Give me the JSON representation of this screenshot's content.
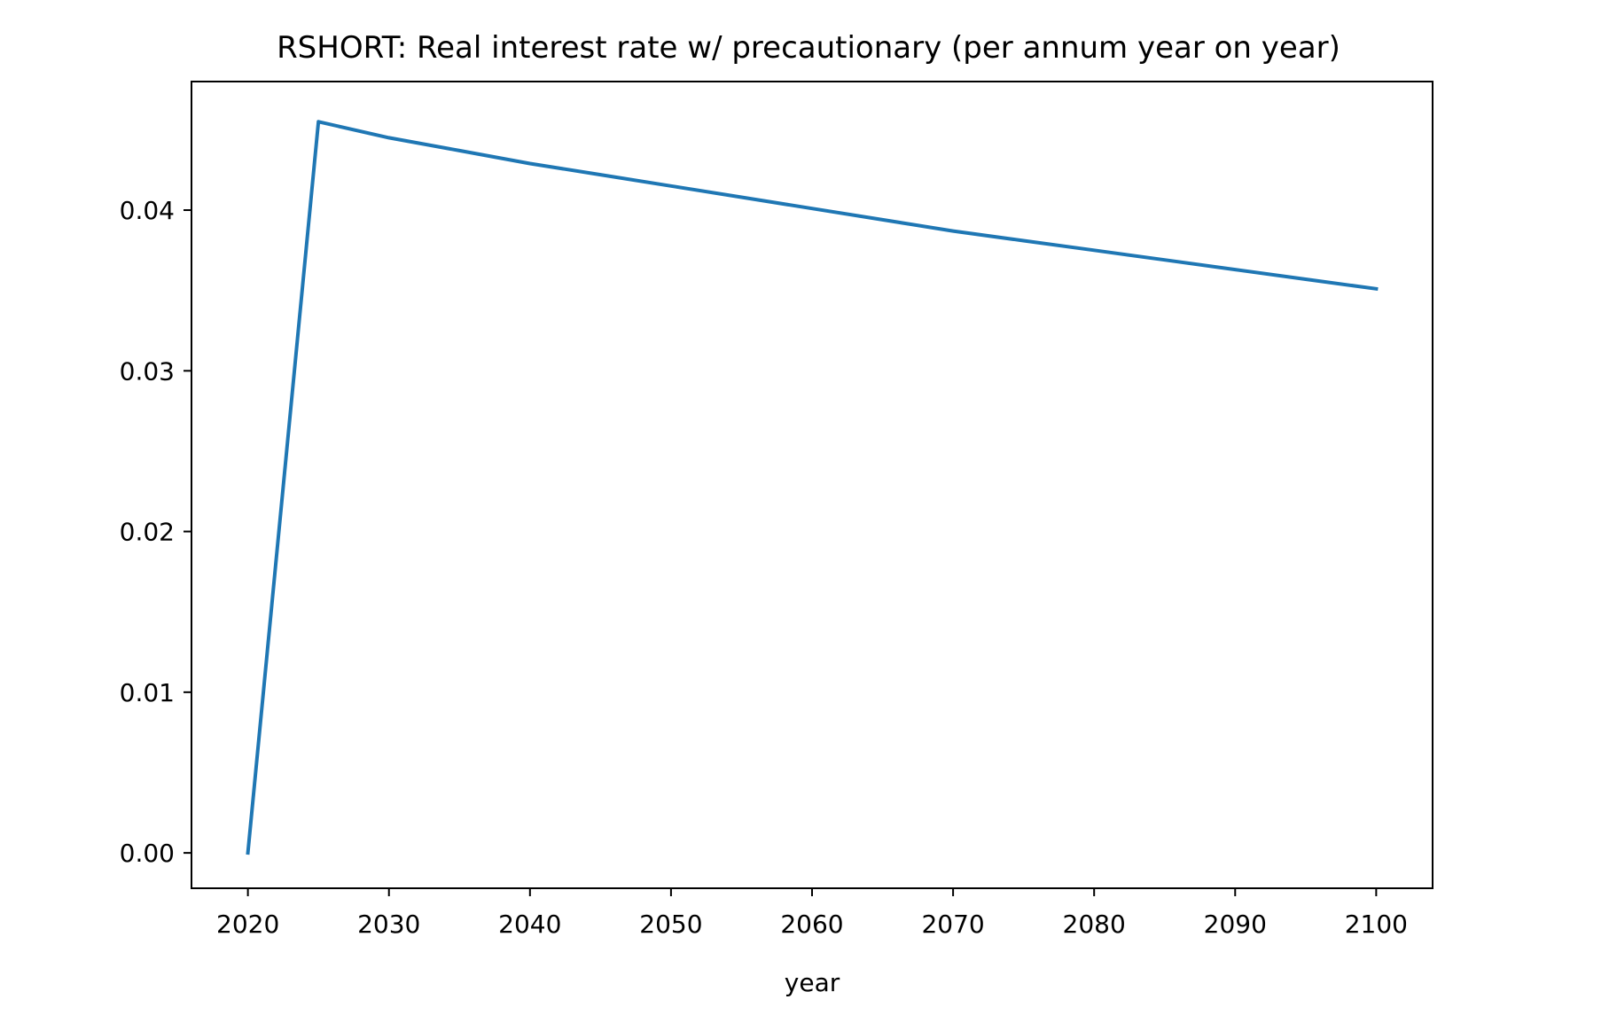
{
  "chart_data": {
    "type": "line",
    "title": "RSHORT: Real interest rate w/ precautionary (per annum year on year)",
    "xlabel": "year",
    "ylabel": "",
    "xlim": [
      2016,
      2104
    ],
    "ylim": [
      -0.0022,
      0.048
    ],
    "xticks": [
      2020,
      2030,
      2040,
      2050,
      2060,
      2070,
      2080,
      2090,
      2100
    ],
    "yticks": [
      0.0,
      0.01,
      0.02,
      0.03,
      0.04
    ],
    "ytick_labels": [
      "0.00",
      "0.01",
      "0.02",
      "0.03",
      "0.04"
    ],
    "grid": false,
    "series": [
      {
        "color": "#1f77b4",
        "x": [
          2020,
          2025,
          2030,
          2035,
          2040,
          2045,
          2050,
          2055,
          2060,
          2065,
          2070,
          2075,
          2080,
          2085,
          2090,
          2095,
          2100
        ],
        "y": [
          0.0,
          0.0455,
          0.0445,
          0.0437,
          0.0429,
          0.0422,
          0.0415,
          0.0408,
          0.0401,
          0.0394,
          0.0387,
          0.0381,
          0.0375,
          0.0369,
          0.0363,
          0.0357,
          0.0351
        ]
      }
    ]
  }
}
